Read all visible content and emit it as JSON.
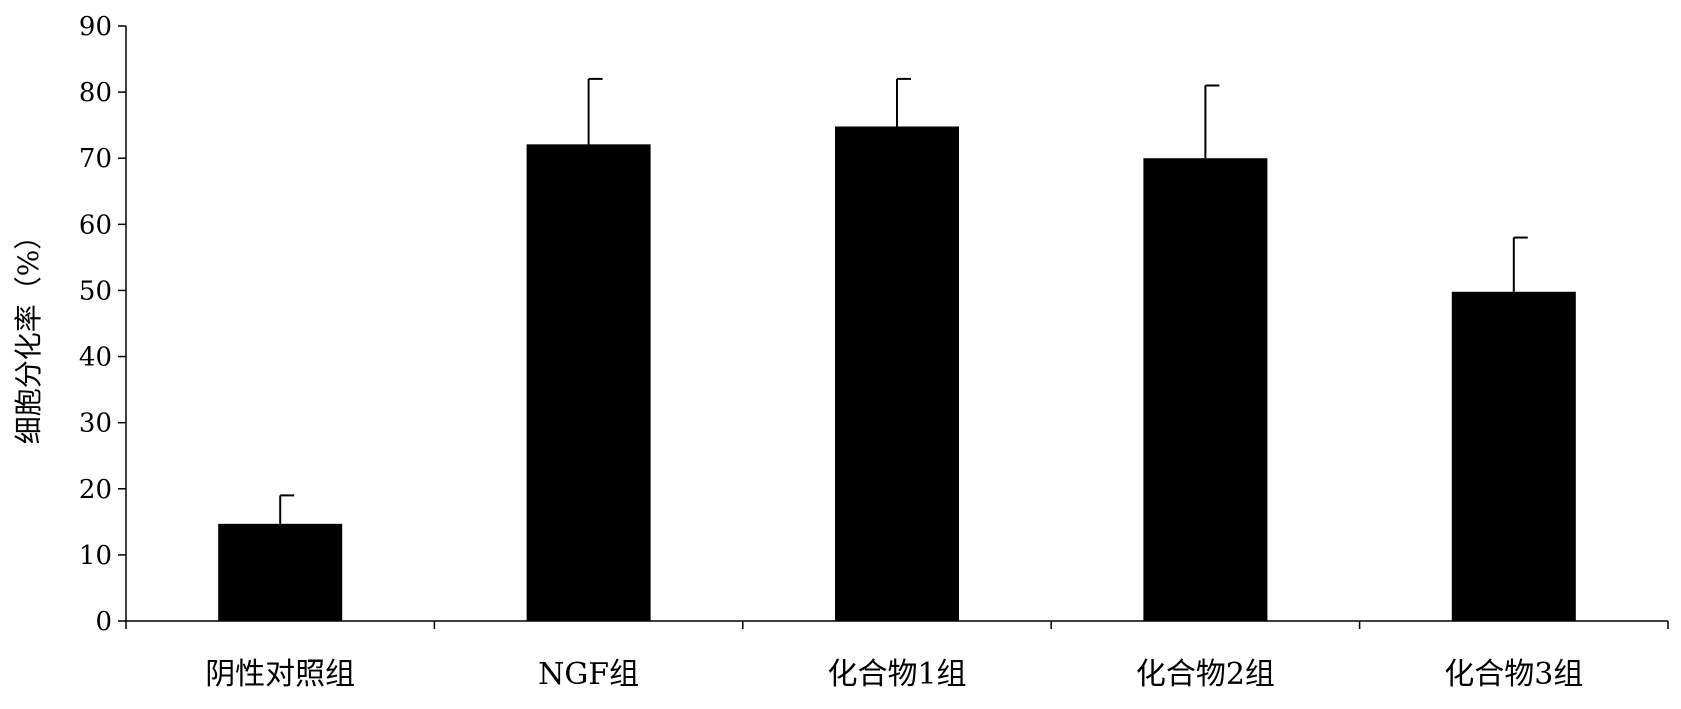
{
  "chart_data": {
    "type": "bar",
    "title": "",
    "xlabel": "",
    "ylabel": "细胞分化率（%）",
    "ylim": [
      0,
      90
    ],
    "yticks": [
      0,
      10,
      20,
      30,
      40,
      50,
      60,
      70,
      80,
      90
    ],
    "categories": [
      "阴性对照组",
      "NGF组",
      "化合物1组",
      "化合物2组",
      "化合物3组"
    ],
    "values": [
      14.7,
      72.1,
      74.8,
      70.0,
      49.8
    ],
    "error_plus": [
      4.3,
      9.9,
      7.2,
      11.0,
      8.2
    ],
    "bar_color": "#000000",
    "grid": false,
    "legend": "none"
  }
}
